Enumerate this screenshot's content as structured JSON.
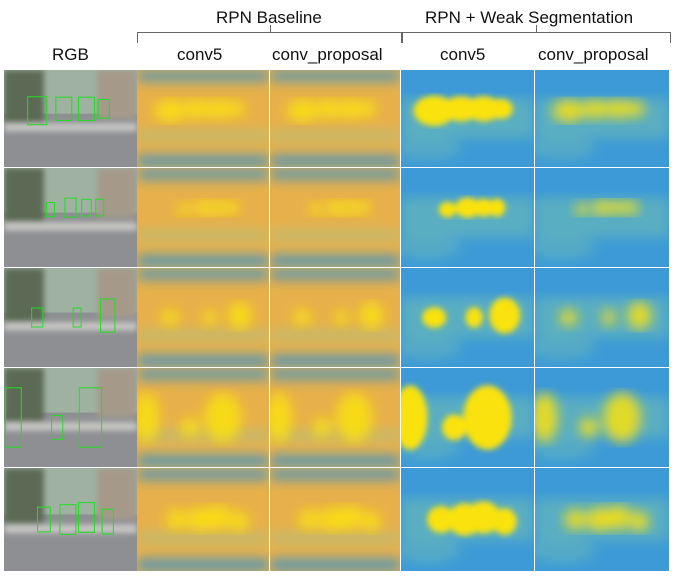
{
  "group_titles": {
    "baseline": "RPN Baseline",
    "weak_seg": "RPN + Weak Segmentation"
  },
  "column_headers": [
    "RGB",
    "conv5",
    "conv_proposal",
    "conv5",
    "conv_proposal"
  ],
  "rows": [
    {
      "scene": "street scene with car on left and pedestrians ahead"
    },
    {
      "scene": "road with trees and small distant pedestrians"
    },
    {
      "scene": "urban street with buildings and pedestrians on sidewalk"
    },
    {
      "scene": "crosswalk with close pedestrians and a dog"
    },
    {
      "scene": "city intersection with group of pedestrians"
    }
  ],
  "colors": {
    "heat_low": "#2f8fd1",
    "heat_mid": "#7fc8a9",
    "heat_high": "#f9e20d",
    "baseline_bg": "#e8b04a",
    "weak_bg": "#3d9ad6",
    "bbox": "#22dd22"
  }
}
